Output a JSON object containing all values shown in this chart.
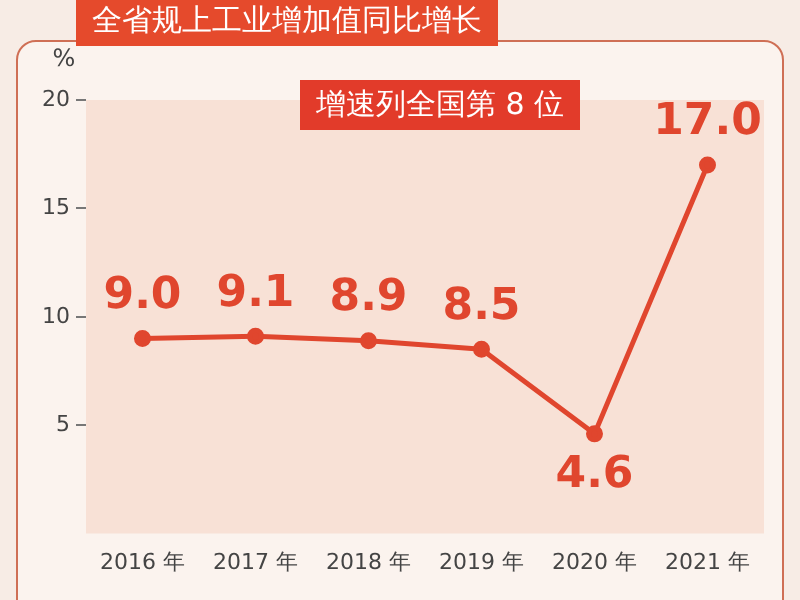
{
  "chart_data": {
    "type": "line",
    "title": "全省规上工业增加值同比增长",
    "ylabel": "%",
    "annotations": [
      "增速列全国第 8 位"
    ],
    "categories": [
      "2016 年",
      "2017 年",
      "2018 年",
      "2019 年",
      "2020 年",
      "2021 年"
    ],
    "series": [
      {
        "color": "#e0462e",
        "values": [
          9.0,
          9.1,
          8.9,
          8.5,
          4.6,
          17.0
        ],
        "value_labels": [
          "9.0",
          "9.1",
          "8.9",
          "8.5",
          "4.6",
          "17.0"
        ]
      }
    ],
    "ylim": [
      0,
      20
    ],
    "yticks": [
      5,
      10,
      15,
      20
    ],
    "grid": false,
    "legend": false,
    "marker": "circle",
    "line_style": "solid"
  }
}
